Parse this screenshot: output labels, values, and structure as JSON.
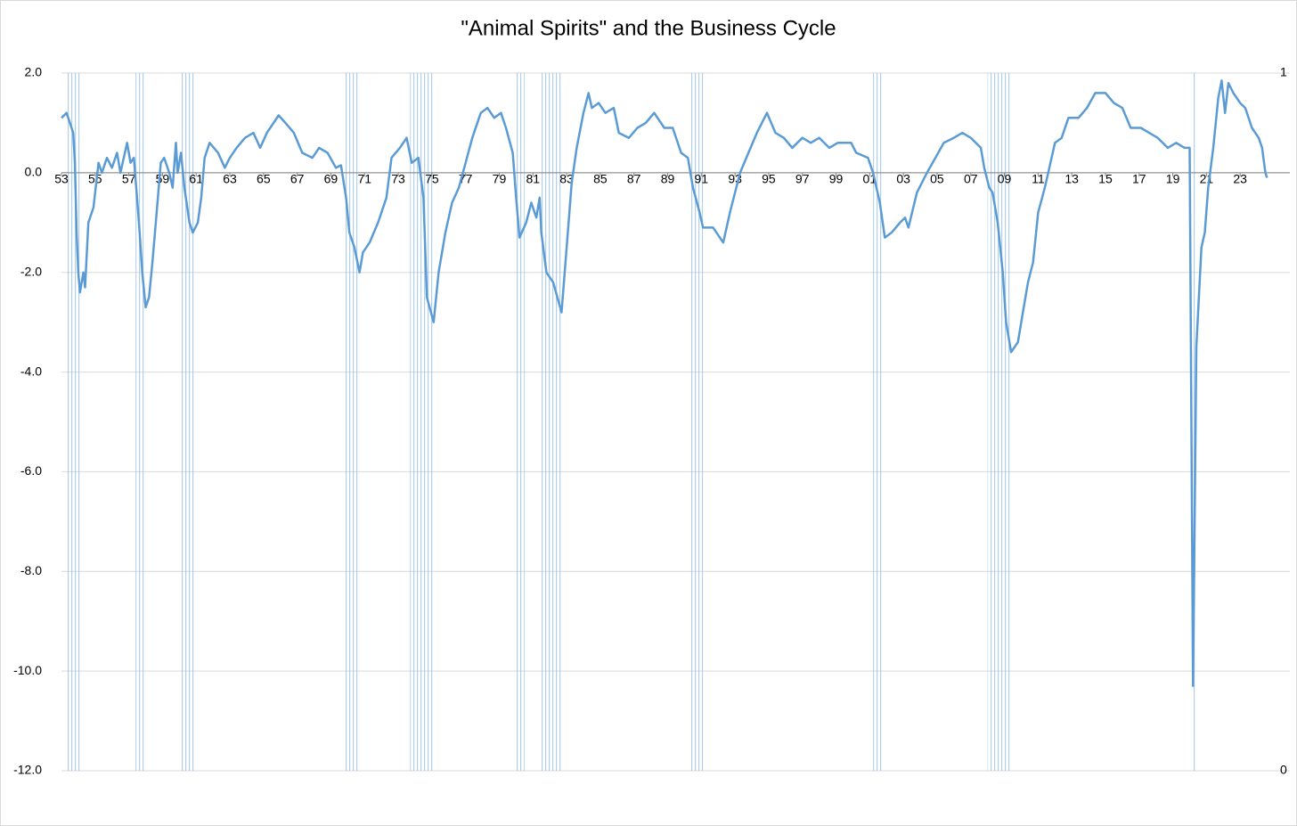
{
  "chart_data": {
    "type": "line",
    "title": "\"Animal Spirits\" and the Business Cycle",
    "xlim": [
      1953,
      2025
    ],
    "xticks": [
      {
        "value": 1953,
        "label": "53"
      },
      {
        "value": 1955,
        "label": "55"
      },
      {
        "value": 1957,
        "label": "57"
      },
      {
        "value": 1959,
        "label": "59"
      },
      {
        "value": 1961,
        "label": "61"
      },
      {
        "value": 1963,
        "label": "63"
      },
      {
        "value": 1965,
        "label": "65"
      },
      {
        "value": 1967,
        "label": "67"
      },
      {
        "value": 1969,
        "label": "69"
      },
      {
        "value": 1971,
        "label": "71"
      },
      {
        "value": 1973,
        "label": "73"
      },
      {
        "value": 1975,
        "label": "75"
      },
      {
        "value": 1977,
        "label": "77"
      },
      {
        "value": 1979,
        "label": "79"
      },
      {
        "value": 1981,
        "label": "81"
      },
      {
        "value": 1983,
        "label": "83"
      },
      {
        "value": 1985,
        "label": "85"
      },
      {
        "value": 1987,
        "label": "87"
      },
      {
        "value": 1989,
        "label": "89"
      },
      {
        "value": 1991,
        "label": "91"
      },
      {
        "value": 1993,
        "label": "93"
      },
      {
        "value": 1995,
        "label": "95"
      },
      {
        "value": 1997,
        "label": "97"
      },
      {
        "value": 1999,
        "label": "99"
      },
      {
        "value": 2001,
        "label": "01"
      },
      {
        "value": 2003,
        "label": "03"
      },
      {
        "value": 2005,
        "label": "05"
      },
      {
        "value": 2007,
        "label": "07"
      },
      {
        "value": 2009,
        "label": "09"
      },
      {
        "value": 2011,
        "label": "11"
      },
      {
        "value": 2013,
        "label": "13"
      },
      {
        "value": 2015,
        "label": "15"
      },
      {
        "value": 2017,
        "label": "17"
      },
      {
        "value": 2019,
        "label": "19"
      },
      {
        "value": 2021,
        "label": "21"
      },
      {
        "value": 2023,
        "label": "23"
      }
    ],
    "ylim": [
      -12,
      2
    ],
    "yticks": [
      {
        "value": -12,
        "label": "-12.0"
      },
      {
        "value": -10,
        "label": "-10.0"
      },
      {
        "value": -8,
        "label": "-8.0"
      },
      {
        "value": -6,
        "label": "-6.0"
      },
      {
        "value": -4,
        "label": "-4.0"
      },
      {
        "value": -2,
        "label": "-2.0"
      },
      {
        "value": 0,
        "label": "0.0"
      },
      {
        "value": 2,
        "label": "2.0"
      }
    ],
    "y2lim": [
      0,
      1
    ],
    "y2ticks": [
      0,
      1
    ],
    "grid": true,
    "x": [
      1953.0,
      1953.3,
      1953.5,
      1953.7,
      1953.8,
      1953.9,
      1954.0,
      1954.1,
      1954.3,
      1954.4,
      1954.6,
      1954.9,
      1955.2,
      1955.4,
      1955.7,
      1956.0,
      1956.3,
      1956.5,
      1956.9,
      1957.1,
      1957.3,
      1957.6,
      1957.8,
      1958.0,
      1958.2,
      1958.4,
      1958.6,
      1958.9,
      1959.1,
      1959.4,
      1959.6,
      1959.8,
      1959.9,
      1960.1,
      1960.3,
      1960.6,
      1960.8,
      1961.1,
      1961.3,
      1961.5,
      1961.8,
      1962.3,
      1962.7,
      1963.0,
      1963.4,
      1963.9,
      1964.4,
      1964.8,
      1965.2,
      1965.9,
      1966.3,
      1966.8,
      1967.3,
      1967.9,
      1968.3,
      1968.8,
      1969.3,
      1969.6,
      1969.9,
      1970.1,
      1970.4,
      1970.7,
      1970.9,
      1971.3,
      1971.8,
      1972.3,
      1972.6,
      1973.1,
      1973.5,
      1973.8,
      1974.2,
      1974.5,
      1974.7,
      1975.1,
      1975.4,
      1975.8,
      1976.2,
      1976.6,
      1977.0,
      1977.4,
      1977.9,
      1978.3,
      1978.7,
      1979.1,
      1979.4,
      1979.8,
      1980.0,
      1980.2,
      1980.6,
      1980.9,
      1981.2,
      1981.4,
      1981.5,
      1981.8,
      1982.2,
      1982.7,
      1983.0,
      1983.3,
      1983.6,
      1984.0,
      1984.3,
      1984.5,
      1984.9,
      1985.3,
      1985.8,
      1986.1,
      1986.7,
      1987.2,
      1987.7,
      1988.2,
      1988.8,
      1989.3,
      1989.8,
      1990.2,
      1990.5,
      1990.9,
      1991.1,
      1991.7,
      1992.3,
      1992.7,
      1993.3,
      1993.8,
      1994.3,
      1994.9,
      1995.4,
      1995.9,
      1996.4,
      1997.0,
      1997.5,
      1998.0,
      1998.6,
      1999.1,
      1999.9,
      2000.2,
      2000.9,
      2001.2,
      2001.6,
      2001.9,
      2002.3,
      2002.8,
      2003.1,
      2003.3,
      2003.8,
      2004.4,
      2004.9,
      2005.4,
      2006.0,
      2006.5,
      2007.0,
      2007.6,
      2007.8,
      2008.1,
      2008.3,
      2008.6,
      2008.9,
      2009.1,
      2009.4,
      2009.8,
      2010.1,
      2010.4,
      2010.7,
      2011.0,
      2011.4,
      2011.8,
      2012.0,
      2012.4,
      2012.8,
      2013.4,
      2013.9,
      2014.4,
      2015.0,
      2015.5,
      2016.0,
      2016.5,
      2017.1,
      2017.6,
      2018.1,
      2018.7,
      2019.2,
      2019.7,
      2020.0,
      2020.2,
      2020.4,
      2020.7,
      2020.9,
      2021.1,
      2021.4,
      2021.7,
      2021.9,
      2022.1,
      2022.3,
      2022.6,
      2023.0,
      2023.3,
      2023.7,
      2024.1,
      2024.3,
      2024.5,
      2024.6
    ],
    "series": [
      {
        "color": "#5b9bd5",
        "values": [
          1.1,
          1.2,
          1.0,
          0.8,
          0.2,
          -1.2,
          -2.0,
          -2.4,
          -2.0,
          -2.3,
          -1.0,
          -0.7,
          0.2,
          0.0,
          0.3,
          0.1,
          0.4,
          0.0,
          0.6,
          0.2,
          0.3,
          -1.0,
          -2.0,
          -2.7,
          -2.5,
          -1.8,
          -1.0,
          0.2,
          0.3,
          0.0,
          -0.3,
          0.6,
          0.0,
          0.4,
          -0.3,
          -1.0,
          -1.2,
          -1.0,
          -0.5,
          0.3,
          0.6,
          0.4,
          0.1,
          0.3,
          0.5,
          0.7,
          0.8,
          0.5,
          0.8,
          1.15,
          1.0,
          0.8,
          0.4,
          0.3,
          0.5,
          0.4,
          0.1,
          0.15,
          -0.5,
          -1.2,
          -1.5,
          -2.0,
          -1.6,
          -1.4,
          -1.0,
          -0.5,
          0.3,
          0.5,
          0.7,
          0.2,
          0.3,
          -0.5,
          -2.5,
          -3.0,
          -2.0,
          -1.2,
          -0.6,
          -0.3,
          0.2,
          0.7,
          1.2,
          1.3,
          1.1,
          1.2,
          0.9,
          0.4,
          -0.5,
          -1.3,
          -1.0,
          -0.6,
          -0.9,
          -0.5,
          -1.2,
          -2.0,
          -2.2,
          -2.8,
          -1.5,
          -0.2,
          0.5,
          1.2,
          1.6,
          1.3,
          1.4,
          1.2,
          1.3,
          0.8,
          0.7,
          0.9,
          1.0,
          1.2,
          0.9,
          0.9,
          0.4,
          0.3,
          -0.3,
          -0.8,
          -1.1,
          -1.1,
          -1.4,
          -0.8,
          0.0,
          0.4,
          0.8,
          1.2,
          0.8,
          0.7,
          0.5,
          0.7,
          0.6,
          0.7,
          0.5,
          0.6,
          0.6,
          0.4,
          0.3,
          0.0,
          -0.6,
          -1.3,
          -1.2,
          -1.0,
          -0.9,
          -1.1,
          -0.4,
          0.0,
          0.3,
          0.6,
          0.7,
          0.8,
          0.7,
          0.5,
          0.1,
          -0.3,
          -0.4,
          -1.0,
          -2.0,
          -3.0,
          -3.6,
          -3.4,
          -2.8,
          -2.2,
          -1.8,
          -0.8,
          -0.3,
          0.3,
          0.6,
          0.7,
          1.1,
          1.1,
          1.3,
          1.6,
          1.6,
          1.4,
          1.3,
          0.9,
          0.9,
          0.8,
          0.7,
          0.5,
          0.6,
          0.5,
          0.5,
          -10.3,
          -3.5,
          -1.5,
          -1.2,
          -0.3,
          0.5,
          1.5,
          1.85,
          1.2,
          1.8,
          1.6,
          1.4,
          1.3,
          0.9,
          0.7,
          0.5,
          0.0,
          -0.1
        ]
      }
    ],
    "recessions": {
      "color": "#bdd7ee",
      "axis": "y2",
      "starts": [
        1953.3,
        1957.4,
        1960.1,
        1969.8,
        1973.7,
        1979.9,
        1981.4,
        1990.4,
        2001.2,
        2008.0,
        2020.1
      ],
      "ends": [
        1954.1,
        1958.0,
        1960.9,
        1970.7,
        1975.1,
        1980.5,
        1982.7,
        1991.1,
        2001.8,
        2009.4,
        2020.4
      ],
      "values": [
        1,
        1,
        1,
        1,
        1,
        1,
        1,
        1,
        1,
        1,
        1
      ]
    }
  }
}
